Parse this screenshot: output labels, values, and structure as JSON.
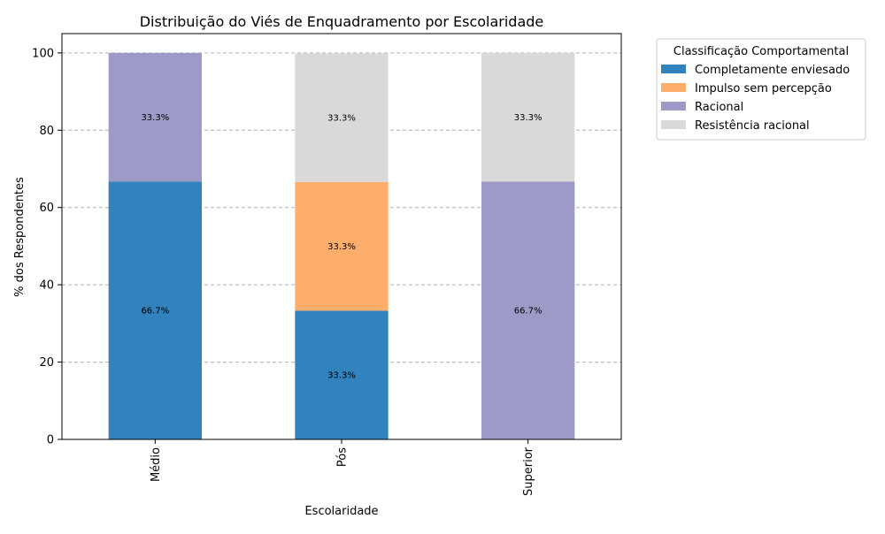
{
  "chart_data": {
    "type": "bar",
    "stacked": true,
    "title": "Distribuição do Viés de Enquadramento por Escolaridade",
    "xlabel": "Escolaridade",
    "ylabel": "% dos Respondentes",
    "categories": [
      "Médio",
      "Pós",
      "Superior"
    ],
    "ylim": [
      0,
      105
    ],
    "yticks": [
      0,
      20,
      40,
      60,
      80,
      100
    ],
    "grid": "y-dashed",
    "legend": {
      "title": "Classificação Comportamental",
      "placement": "outside-top-right"
    },
    "series": [
      {
        "name": "Completamente enviesado",
        "color": "#3182bd",
        "values": [
          66.7,
          33.3,
          0
        ]
      },
      {
        "name": "Impulso sem percepção",
        "color": "#fdae6b",
        "values": [
          0,
          33.3,
          0
        ]
      },
      {
        "name": "Racional",
        "color": "#9e9ac8",
        "values": [
          33.3,
          0,
          66.7
        ]
      },
      {
        "name": "Resistência racional",
        "color": "#d9d9d9",
        "values": [
          0,
          33.3,
          33.3
        ]
      }
    ],
    "data_labels": [
      [
        "66.7%",
        "",
        "33.3%",
        ""
      ],
      [
        "33.3%",
        "33.3%",
        "",
        "33.3%"
      ],
      [
        "",
        "",
        "66.7%",
        "33.3%"
      ]
    ]
  }
}
